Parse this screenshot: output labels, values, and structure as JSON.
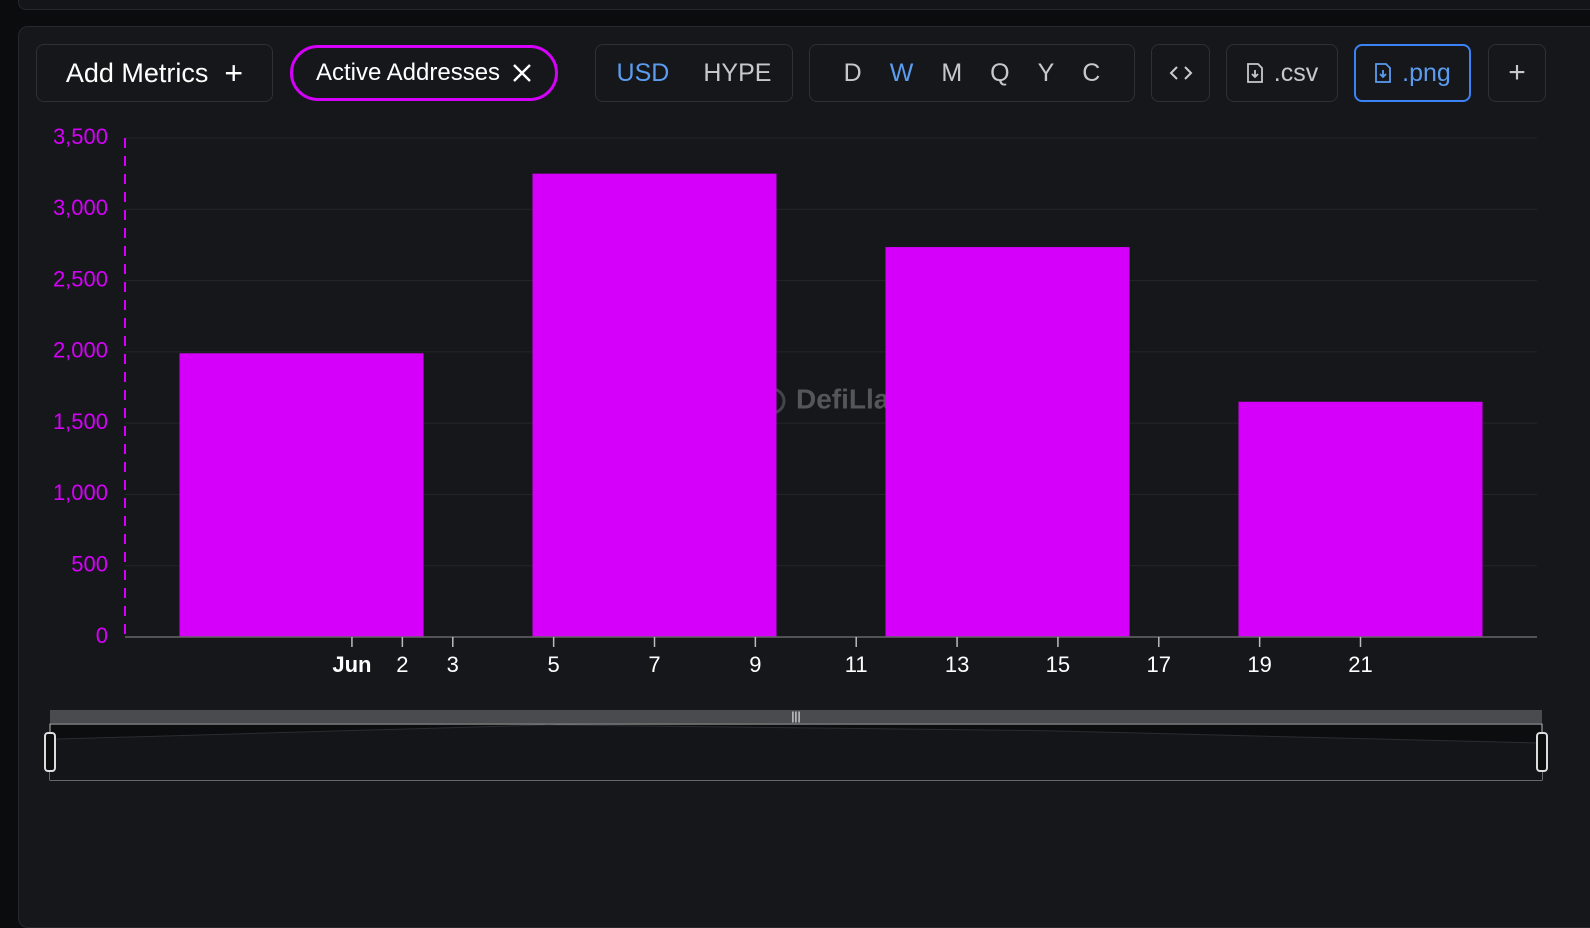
{
  "toolbar": {
    "add_metrics": "Add Metrics",
    "currencies": [
      "USD",
      "HYPE"
    ],
    "active_currency": "USD",
    "intervals": [
      "D",
      "W",
      "M",
      "Q",
      "Y",
      "C"
    ],
    "active_interval": "W",
    "exports": [
      ".csv",
      ".png"
    ],
    "active_export": ".png"
  },
  "chart_data": {
    "type": "bar",
    "watermark": "DefiLlama",
    "x": [
      0,
      7,
      14,
      21
    ],
    "series": [
      {
        "name": "Active Addresses",
        "color": "#d500f9",
        "values": [
          1990,
          3250,
          2735,
          1650
        ]
      }
    ],
    "xlim": [
      -3.5,
      24.5
    ],
    "xticks": [
      {
        "value": 1,
        "label": "Jun"
      },
      2,
      3,
      5,
      7,
      9,
      11,
      13,
      15,
      17,
      19,
      21
    ],
    "ylim": [
      0,
      3500
    ],
    "yticks": [
      0,
      500,
      {
        "value": 1000,
        "label": "1,000"
      },
      {
        "value": 1500,
        "label": "1,500"
      },
      {
        "value": 2000,
        "label": "2,000"
      },
      {
        "value": 2500,
        "label": "2,500"
      },
      {
        "value": 3000,
        "label": "3,000"
      },
      {
        "value": 3500,
        "label": "3,500"
      }
    ],
    "grid": true
  }
}
